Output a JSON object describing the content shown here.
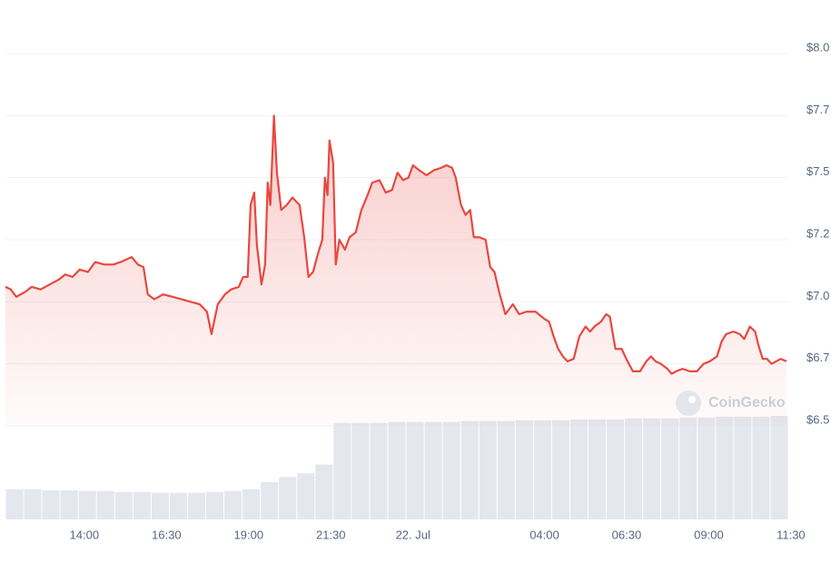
{
  "chart_data": {
    "type": "line",
    "color": "#e8483f",
    "watermark": "CoinGecko",
    "xlim": [
      11.6,
      35.42
    ],
    "xticks": [
      {
        "value": 14,
        "label": "14:00"
      },
      {
        "value": 16.5,
        "label": "16:30"
      },
      {
        "value": 19,
        "label": "19:00"
      },
      {
        "value": 21.5,
        "label": "21:30"
      },
      {
        "value": 24,
        "label": "22. Jul"
      },
      {
        "value": 28,
        "label": "04:00"
      },
      {
        "value": 30.5,
        "label": "06:30"
      },
      {
        "value": 33,
        "label": "09:00"
      },
      {
        "value": 35.5,
        "label": "11:30"
      }
    ],
    "ylim": [
      6.5,
      8.0
    ],
    "yticks": [
      {
        "value": 8.0,
        "label": "$8.0"
      },
      {
        "value": 7.75,
        "label": "$7.7"
      },
      {
        "value": 7.5,
        "label": "$7.5"
      },
      {
        "value": 7.25,
        "label": "$7.2"
      },
      {
        "value": 7.0,
        "label": "$7.0"
      },
      {
        "value": 6.75,
        "label": "$6.7"
      },
      {
        "value": 6.5,
        "label": "$6.5"
      }
    ],
    "grid": true,
    "x": [
      11.6,
      11.76,
      11.93,
      12.2,
      12.4,
      12.67,
      12.95,
      13.23,
      13.42,
      13.64,
      13.86,
      14.11,
      14.33,
      14.61,
      14.88,
      15.1,
      15.44,
      15.63,
      15.8,
      15.93,
      16.13,
      16.4,
      16.68,
      16.96,
      17.23,
      17.51,
      17.73,
      17.87,
      18.06,
      18.28,
      18.47,
      18.7,
      18.83,
      18.97,
      19.06,
      19.17,
      19.25,
      19.39,
      19.5,
      19.58,
      19.66,
      19.77,
      19.86,
      19.99,
      20.16,
      20.33,
      20.55,
      20.69,
      20.82,
      20.96,
      21.1,
      21.24,
      21.32,
      21.4,
      21.46,
      21.57,
      21.65,
      21.76,
      21.93,
      22.07,
      22.26,
      22.43,
      22.62,
      22.76,
      22.98,
      23.17,
      23.36,
      23.53,
      23.7,
      23.86,
      24.0,
      24.19,
      24.41,
      24.64,
      24.86,
      25.02,
      25.19,
      25.3,
      25.46,
      25.6,
      25.74,
      25.85,
      26.02,
      26.21,
      26.35,
      26.48,
      26.62,
      26.81,
      27.04,
      27.23,
      27.45,
      27.73,
      28.01,
      28.14,
      28.28,
      28.42,
      28.56,
      28.7,
      28.89,
      29.06,
      29.25,
      29.39,
      29.52,
      29.72,
      29.88,
      29.99,
      30.16,
      30.35,
      30.49,
      30.69,
      30.91,
      31.1,
      31.24,
      31.38,
      31.54,
      31.74,
      31.87,
      32.01,
      32.2,
      32.42,
      32.64,
      32.84,
      33.03,
      33.25,
      33.39,
      33.53,
      33.75,
      33.94,
      34.08,
      34.25,
      34.41,
      34.5,
      34.64,
      34.77,
      34.91,
      35.05,
      35.19,
      35.36
    ],
    "values": [
      7.06,
      7.05,
      7.02,
      7.04,
      7.06,
      7.05,
      7.07,
      7.09,
      7.11,
      7.1,
      7.13,
      7.12,
      7.16,
      7.15,
      7.15,
      7.16,
      7.18,
      7.15,
      7.14,
      7.03,
      7.01,
      7.03,
      7.02,
      7.01,
      7.0,
      6.99,
      6.96,
      6.87,
      6.99,
      7.03,
      7.05,
      7.06,
      7.1,
      7.1,
      7.39,
      7.44,
      7.23,
      7.07,
      7.15,
      7.48,
      7.39,
      7.75,
      7.52,
      7.37,
      7.39,
      7.42,
      7.39,
      7.26,
      7.1,
      7.12,
      7.19,
      7.25,
      7.5,
      7.43,
      7.65,
      7.56,
      7.15,
      7.25,
      7.21,
      7.26,
      7.28,
      7.37,
      7.43,
      7.48,
      7.49,
      7.44,
      7.45,
      7.52,
      7.49,
      7.5,
      7.55,
      7.53,
      7.51,
      7.53,
      7.54,
      7.55,
      7.54,
      7.5,
      7.39,
      7.35,
      7.37,
      7.26,
      7.26,
      7.25,
      7.14,
      7.12,
      7.04,
      6.95,
      6.99,
      6.95,
      6.96,
      6.96,
      6.93,
      6.92,
      6.86,
      6.81,
      6.78,
      6.76,
      6.77,
      6.86,
      6.9,
      6.88,
      6.9,
      6.92,
      6.95,
      6.94,
      6.81,
      6.81,
      6.77,
      6.72,
      6.72,
      6.76,
      6.78,
      6.76,
      6.75,
      6.73,
      6.71,
      6.72,
      6.73,
      6.72,
      6.72,
      6.75,
      6.76,
      6.78,
      6.84,
      6.87,
      6.88,
      6.87,
      6.85,
      6.9,
      6.88,
      6.83,
      6.77,
      6.77,
      6.75,
      6.76,
      6.77,
      6.76
    ],
    "volume": {
      "color": "#e4e7ee",
      "ylim": [
        0,
        120
      ],
      "values": [
        34,
        34,
        33,
        33,
        32,
        32,
        31,
        31,
        30,
        30,
        30,
        31,
        32,
        34,
        42,
        48,
        52,
        62,
        109,
        109,
        109,
        110,
        110,
        110,
        110,
        111,
        111,
        111,
        112,
        112,
        112,
        113,
        113,
        113,
        114,
        114,
        114,
        115,
        115,
        116,
        116,
        116,
        117
      ]
    }
  }
}
